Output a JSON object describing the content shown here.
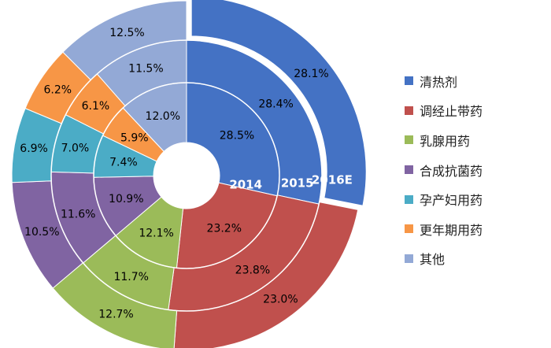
{
  "chart_data": {
    "type": "pie",
    "variant": "multi-ring-donut",
    "title": "",
    "categories": [
      "清热剂",
      "调经止带药",
      "乳腺用药",
      "合成抗菌药",
      "孕产妇用药",
      "更年期用药",
      "其他"
    ],
    "colors": [
      "#4472C4",
      "#C0504D",
      "#9BBB59",
      "#8064A2",
      "#4BACC6",
      "#F79646",
      "#93A9D6"
    ],
    "series": [
      {
        "name": "2014",
        "values": [
          28.5,
          23.2,
          12.1,
          10.9,
          7.4,
          5.9,
          12.0
        ]
      },
      {
        "name": "2015",
        "values": [
          28.4,
          23.8,
          11.7,
          11.6,
          7.0,
          6.1,
          11.5
        ]
      },
      {
        "name": "2016E",
        "values": [
          28.1,
          23.0,
          12.7,
          10.5,
          6.9,
          6.2,
          12.5
        ]
      }
    ],
    "value_format": "{v}%",
    "legend_position": "right"
  }
}
